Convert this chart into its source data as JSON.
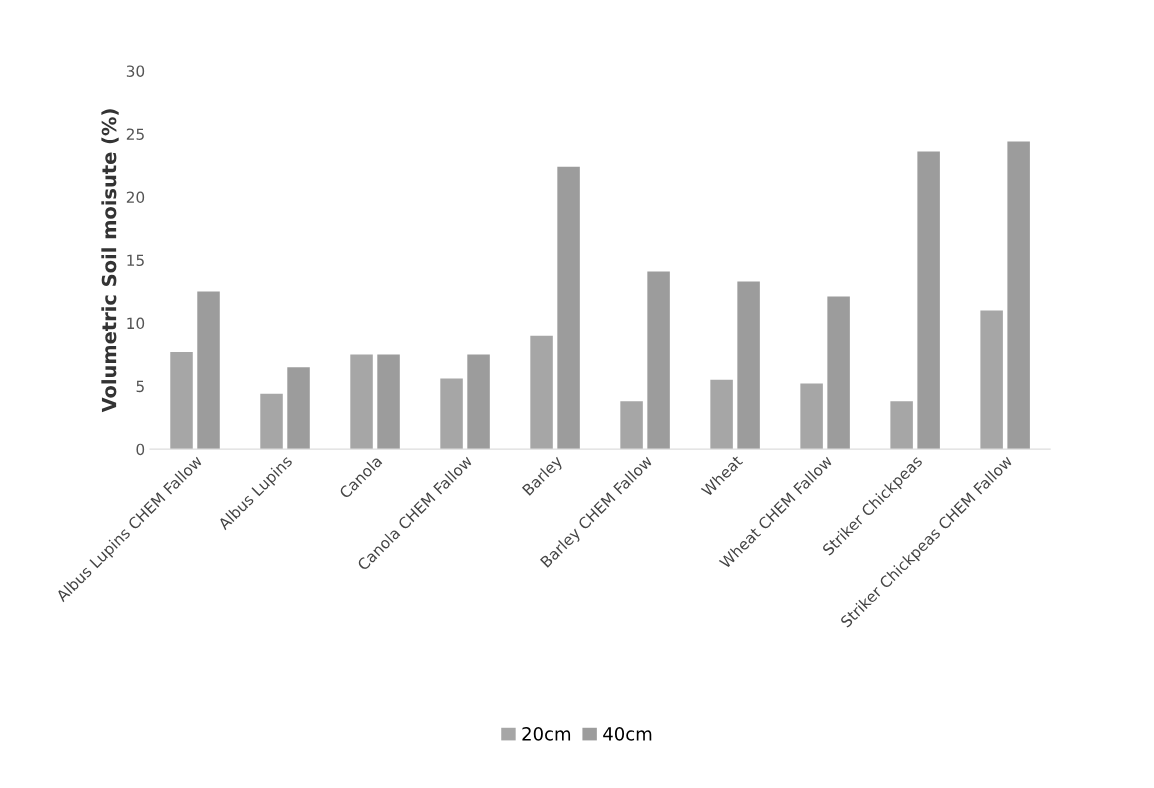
{
  "chart_data": {
    "type": "bar",
    "ylabel": "Volumetric Soil moisute (%)",
    "categories": [
      "Albus Lupins CHEM Fallow",
      "Albus Lupins",
      "Canola",
      "Canola CHEM Fallow",
      "Barley",
      "Barley CHEM Fallow",
      "Wheat",
      "Wheat CHEM Fallow",
      "Striker Chickpeas",
      "Striker Chickpeas CHEM Fallow"
    ],
    "series": [
      {
        "name": "20cm",
        "color": "#a6a6a6",
        "values": [
          7.7,
          4.4,
          7.5,
          5.6,
          9.0,
          3.8,
          5.5,
          5.2,
          3.8,
          11.0
        ]
      },
      {
        "name": "40cm",
        "color": "#9c9c9c",
        "values": [
          12.5,
          6.5,
          7.5,
          7.5,
          22.4,
          14.1,
          13.3,
          12.1,
          23.6,
          24.4
        ]
      }
    ],
    "ylim": [
      0,
      30
    ],
    "yticks": [
      0,
      5,
      10,
      15,
      20,
      25,
      30
    ],
    "legend": "bottom"
  }
}
